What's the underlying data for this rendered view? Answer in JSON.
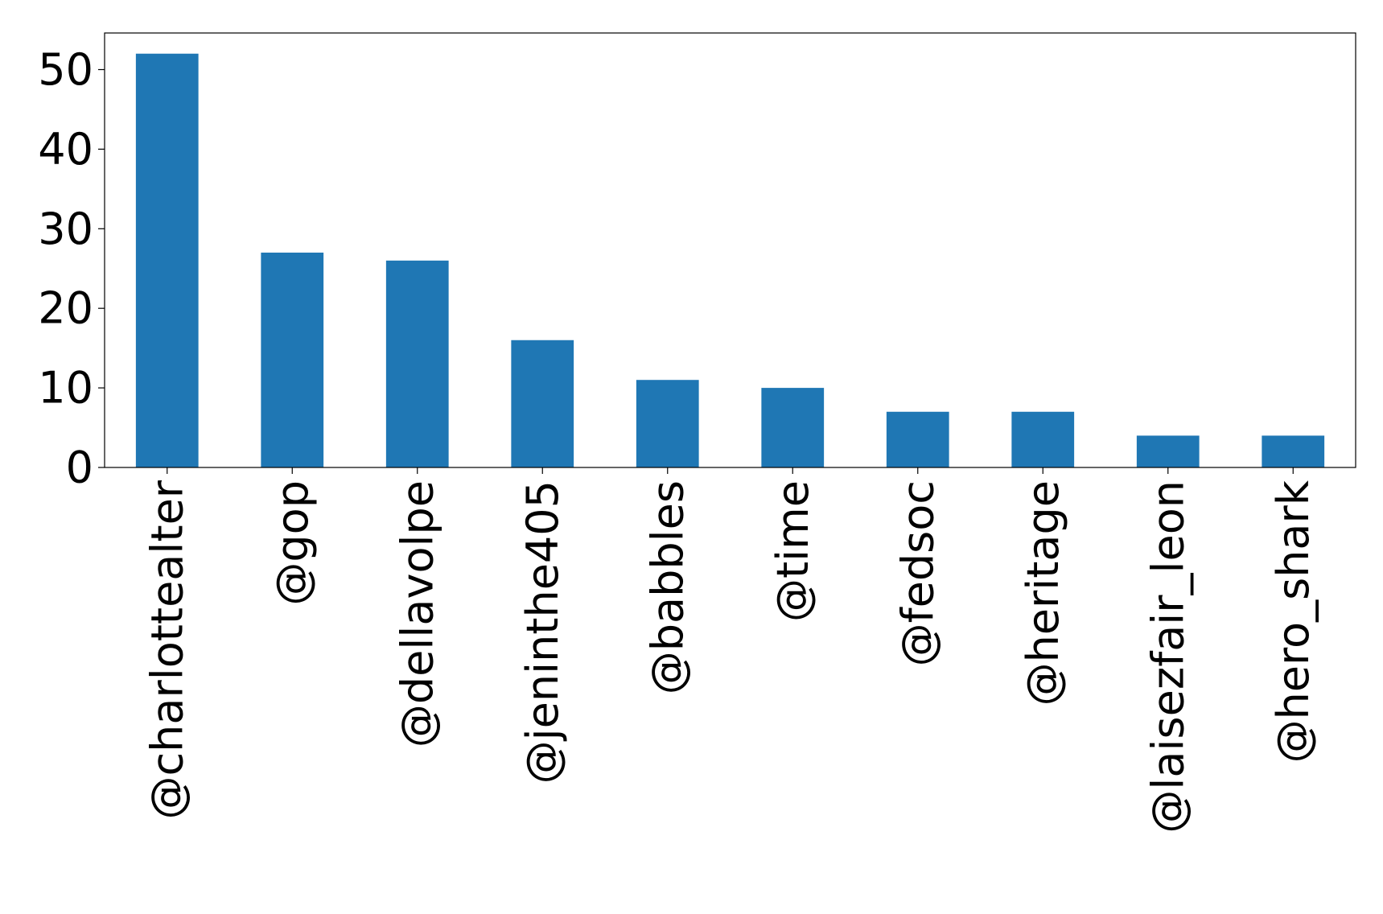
{
  "chart_data": {
    "type": "bar",
    "title": "",
    "xlabel": "",
    "ylabel": "",
    "categories": [
      "@charlottealter",
      "@gop",
      "@dellavolpe",
      "@jeninthe405",
      "@babbles",
      "@time",
      "@fedsoc",
      "@heritage",
      "@laisezfair_leon",
      "@hero_shark"
    ],
    "values": [
      52,
      27,
      26,
      16,
      11,
      10,
      7,
      7,
      4,
      4
    ],
    "ylim": [
      0,
      54.6
    ],
    "yticks": [
      0,
      10,
      20,
      30,
      40,
      50
    ],
    "ytick_labels": [
      "0",
      "10",
      "20",
      "30",
      "40",
      "50"
    ],
    "bar_color": "#1f77b4",
    "grid": false,
    "legend": "none"
  }
}
